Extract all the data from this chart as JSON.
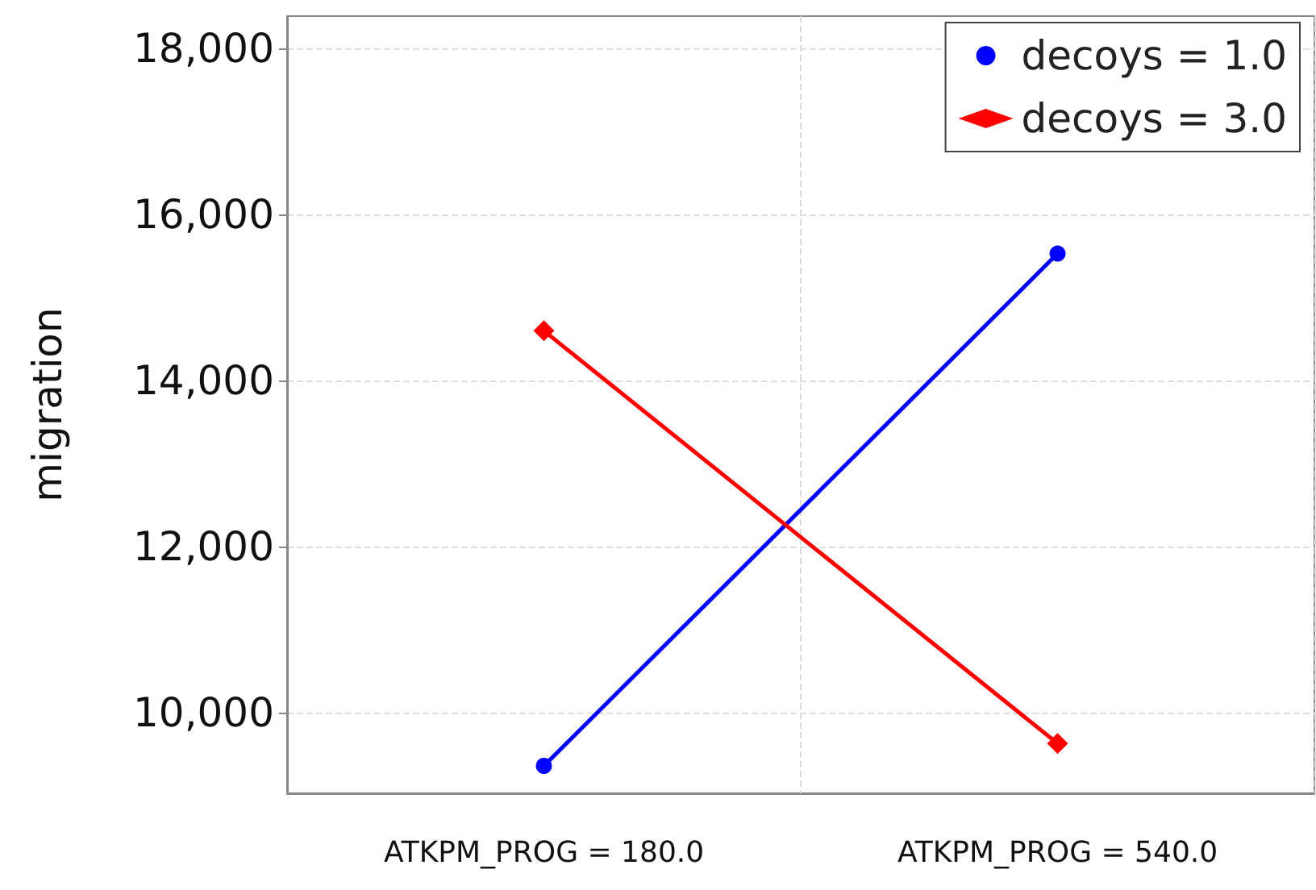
{
  "chart_data": {
    "type": "line",
    "ylabel": "migration",
    "categories": [
      "ATKPM_PROG = 180.0",
      "ATKPM_PROG = 540.0"
    ],
    "series": [
      {
        "name": "decoys = 1.0",
        "color": "#0000ff",
        "marker": "circle",
        "values": [
          9360,
          15530
        ]
      },
      {
        "name": "decoys = 3.0",
        "color": "#ff0000",
        "marker": "diamond",
        "values": [
          14600,
          9630
        ]
      }
    ],
    "ylim": [
      9030,
      18390
    ],
    "yticks": [
      {
        "value": 10000,
        "label": "10,000"
      },
      {
        "value": 12000,
        "label": "12,000"
      },
      {
        "value": 14000,
        "label": "14,000"
      },
      {
        "value": 16000,
        "label": "16,000"
      },
      {
        "value": 18000,
        "label": "18,000"
      }
    ],
    "grid": true,
    "legend": "top right",
    "line_style": "solid"
  }
}
